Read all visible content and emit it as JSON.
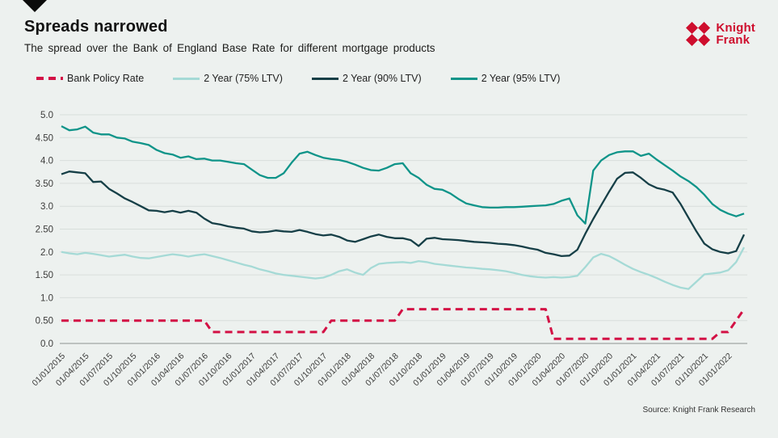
{
  "page": {
    "title": "Spreads narrowed",
    "subtitle": "The spread over the Bank of England Base Rate for different mortgage products",
    "source": "Source: Knight Frank Research"
  },
  "logo": {
    "line1": "Knight",
    "line2": "Frank",
    "color": "#ce0e2d"
  },
  "chart_data": {
    "type": "line",
    "title": "Spreads narrowed",
    "subtitle": "The spread over the Bank of England Base Rate for different mortgage products",
    "x_unit": "monthly from 01/01/2015 to 01/03/2022",
    "x_tick_labels": [
      "01/01/2015",
      "01/04/2015",
      "01/07/2015",
      "01/10/2015",
      "01/01/2016",
      "01/04/2016",
      "01/07/2016",
      "01/10/2016",
      "01/01/2017",
      "01/04/2017",
      "01/07/2017",
      "01/10/2017",
      "01/01/2018",
      "01/04/2018",
      "01/07/2018",
      "01/10/2018",
      "01/01/2019",
      "01/04/2019",
      "01/07/2019",
      "01/10/2019",
      "01/01/2020",
      "01/04/2020",
      "01/07/2020",
      "01/10/2020",
      "01/01/2021",
      "01/04/2021",
      "01/07/2021",
      "01/10/2021",
      "01/01/2022"
    ],
    "x_tick_every": 3,
    "ylim": [
      0,
      5
    ],
    "y_tick_values": [
      5.0,
      4.5,
      4.0,
      3.5,
      3.0,
      2.5,
      2.0,
      1.5,
      1.0,
      0.5,
      0.0
    ],
    "y_tick_labels": [
      "5.0",
      "4.50",
      "4.0",
      "3.50",
      "3.0",
      "2.50",
      "2.0",
      "1.50",
      "1.0",
      "0.50",
      "0.0"
    ],
    "grid": "horizontal",
    "legend_position": "top-left",
    "colors": {
      "background": "#edf1ef",
      "gridline": "#d8dedb",
      "axis_line": "#adb3b0"
    },
    "series": [
      {
        "name": "Bank Policy Rate",
        "color": "#d31145",
        "dashed": true,
        "values": [
          0.5,
          0.5,
          0.5,
          0.5,
          0.5,
          0.5,
          0.5,
          0.5,
          0.5,
          0.5,
          0.5,
          0.5,
          0.5,
          0.5,
          0.5,
          0.5,
          0.5,
          0.5,
          0.5,
          0.25,
          0.25,
          0.25,
          0.25,
          0.25,
          0.25,
          0.25,
          0.25,
          0.25,
          0.25,
          0.25,
          0.25,
          0.25,
          0.25,
          0.25,
          0.5,
          0.5,
          0.5,
          0.5,
          0.5,
          0.5,
          0.5,
          0.5,
          0.5,
          0.75,
          0.75,
          0.75,
          0.75,
          0.75,
          0.75,
          0.75,
          0.75,
          0.75,
          0.75,
          0.75,
          0.75,
          0.75,
          0.75,
          0.75,
          0.75,
          0.75,
          0.75,
          0.75,
          0.1,
          0.1,
          0.1,
          0.1,
          0.1,
          0.1,
          0.1,
          0.1,
          0.1,
          0.1,
          0.1,
          0.1,
          0.1,
          0.1,
          0.1,
          0.1,
          0.1,
          0.1,
          0.1,
          0.1,
          0.1,
          0.25,
          0.25,
          0.5,
          0.75
        ]
      },
      {
        "name": "2 Year (75% LTV)",
        "color": "#a5dad6",
        "dashed": false,
        "values": [
          2.0,
          1.97,
          1.95,
          1.98,
          1.96,
          1.93,
          1.9,
          1.92,
          1.94,
          1.9,
          1.87,
          1.86,
          1.89,
          1.92,
          1.95,
          1.93,
          1.9,
          1.93,
          1.95,
          1.91,
          1.87,
          1.82,
          1.77,
          1.72,
          1.68,
          1.62,
          1.58,
          1.53,
          1.5,
          1.48,
          1.46,
          1.44,
          1.42,
          1.44,
          1.5,
          1.58,
          1.62,
          1.55,
          1.5,
          1.65,
          1.74,
          1.76,
          1.77,
          1.78,
          1.76,
          1.8,
          1.78,
          1.74,
          1.72,
          1.7,
          1.68,
          1.66,
          1.65,
          1.63,
          1.62,
          1.6,
          1.58,
          1.54,
          1.5,
          1.47,
          1.45,
          1.44,
          1.45,
          1.44,
          1.45,
          1.48,
          1.67,
          1.88,
          1.96,
          1.91,
          1.82,
          1.72,
          1.63,
          1.56,
          1.5,
          1.43,
          1.35,
          1.28,
          1.22,
          1.19,
          1.35,
          1.51,
          1.53,
          1.55,
          1.6,
          1.78,
          2.1
        ]
      },
      {
        "name": "2 Year (90% LTV)",
        "color": "#163f47",
        "dashed": false,
        "values": [
          3.7,
          3.76,
          3.74,
          3.72,
          3.53,
          3.54,
          3.38,
          3.28,
          3.17,
          3.09,
          3.0,
          2.91,
          2.9,
          2.87,
          2.9,
          2.86,
          2.9,
          2.86,
          2.73,
          2.63,
          2.6,
          2.56,
          2.53,
          2.51,
          2.45,
          2.43,
          2.44,
          2.47,
          2.45,
          2.44,
          2.48,
          2.44,
          2.39,
          2.36,
          2.38,
          2.33,
          2.25,
          2.22,
          2.28,
          2.34,
          2.38,
          2.33,
          2.3,
          2.3,
          2.26,
          2.13,
          2.29,
          2.31,
          2.28,
          2.27,
          2.26,
          2.24,
          2.22,
          2.21,
          2.2,
          2.18,
          2.17,
          2.15,
          2.12,
          2.08,
          2.05,
          1.98,
          1.95,
          1.91,
          1.92,
          2.05,
          2.4,
          2.72,
          3.02,
          3.32,
          3.6,
          3.73,
          3.74,
          3.62,
          3.48,
          3.4,
          3.36,
          3.3,
          3.05,
          2.75,
          2.45,
          2.18,
          2.06,
          2.0,
          1.97,
          2.02,
          2.38
        ]
      },
      {
        "name": "2 Year (95% LTV)",
        "color": "#0f9489",
        "dashed": false,
        "values": [
          4.75,
          4.66,
          4.68,
          4.74,
          4.61,
          4.57,
          4.57,
          4.5,
          4.48,
          4.41,
          4.38,
          4.34,
          4.23,
          4.16,
          4.13,
          4.06,
          4.09,
          4.03,
          4.04,
          4.0,
          4.0,
          3.97,
          3.94,
          3.92,
          3.8,
          3.68,
          3.62,
          3.62,
          3.72,
          3.95,
          4.15,
          4.19,
          4.12,
          4.06,
          4.03,
          4.01,
          3.97,
          3.91,
          3.84,
          3.79,
          3.78,
          3.84,
          3.92,
          3.94,
          3.72,
          3.62,
          3.47,
          3.38,
          3.36,
          3.28,
          3.16,
          3.06,
          3.02,
          2.98,
          2.97,
          2.97,
          2.98,
          2.98,
          2.99,
          3.0,
          3.01,
          3.02,
          3.05,
          3.12,
          3.17,
          2.8,
          2.62,
          3.78,
          4.0,
          4.12,
          4.18,
          4.2,
          4.2,
          4.1,
          4.15,
          4.02,
          3.9,
          3.78,
          3.65,
          3.55,
          3.42,
          3.25,
          3.05,
          2.92,
          2.84,
          2.78,
          2.84
        ]
      }
    ]
  }
}
